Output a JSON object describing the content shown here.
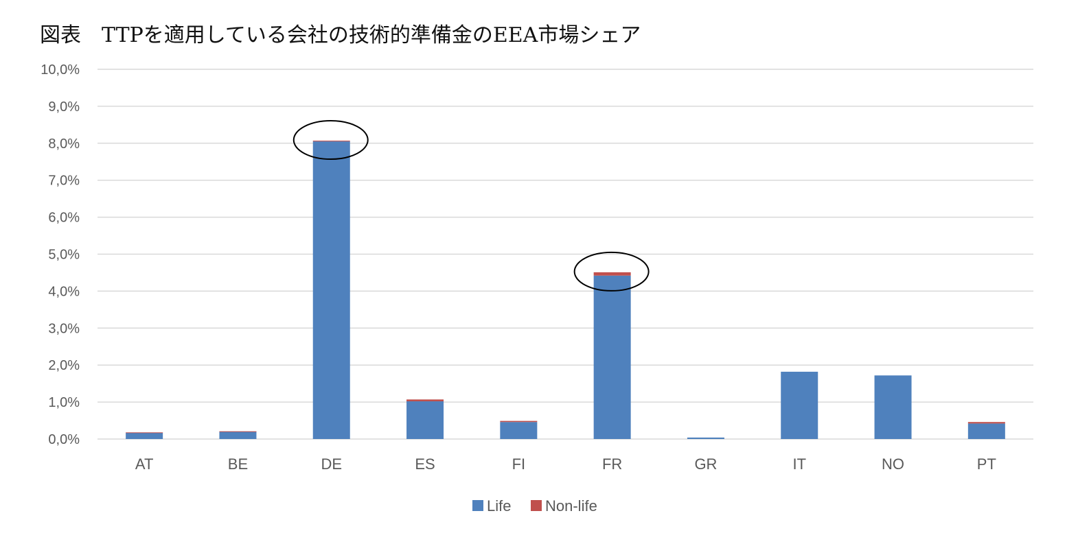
{
  "title": "図表　TTPを適用している会社の技術的準備金のEEA市場シェア",
  "colors": {
    "life": "#4f81bd",
    "non_life": "#c0504d",
    "grid": "#d9d9d9",
    "axis_text": "#595959"
  },
  "chart_data": {
    "type": "bar",
    "stacked": true,
    "title": "図表　TTPを適用している会社の技術的準備金のEEA市場シェア",
    "categories": [
      "AT",
      "BE",
      "DE",
      "ES",
      "FI",
      "FR",
      "GR",
      "IT",
      "NO",
      "PT"
    ],
    "series": [
      {
        "name": "Life",
        "values": [
          0.17,
          0.2,
          8.05,
          1.02,
          0.46,
          4.42,
          0.04,
          1.82,
          1.72,
          0.42
        ]
      },
      {
        "name": "Non-life",
        "values": [
          0.01,
          0.01,
          0.02,
          0.05,
          0.03,
          0.09,
          0.0,
          0.0,
          0.0,
          0.04
        ]
      }
    ],
    "y_ticks": [
      "0,0%",
      "1,0%",
      "2,0%",
      "3,0%",
      "4,0%",
      "5,0%",
      "6,0%",
      "7,0%",
      "8,0%",
      "9,0%",
      "10,0%"
    ],
    "ylim": [
      0,
      10
    ],
    "grid": true,
    "legend": {
      "position": "bottom",
      "entries": [
        "Life",
        "Non-life"
      ]
    },
    "annotations": [
      {
        "type": "ellipse",
        "category": "DE"
      },
      {
        "type": "ellipse",
        "category": "FR"
      }
    ]
  }
}
